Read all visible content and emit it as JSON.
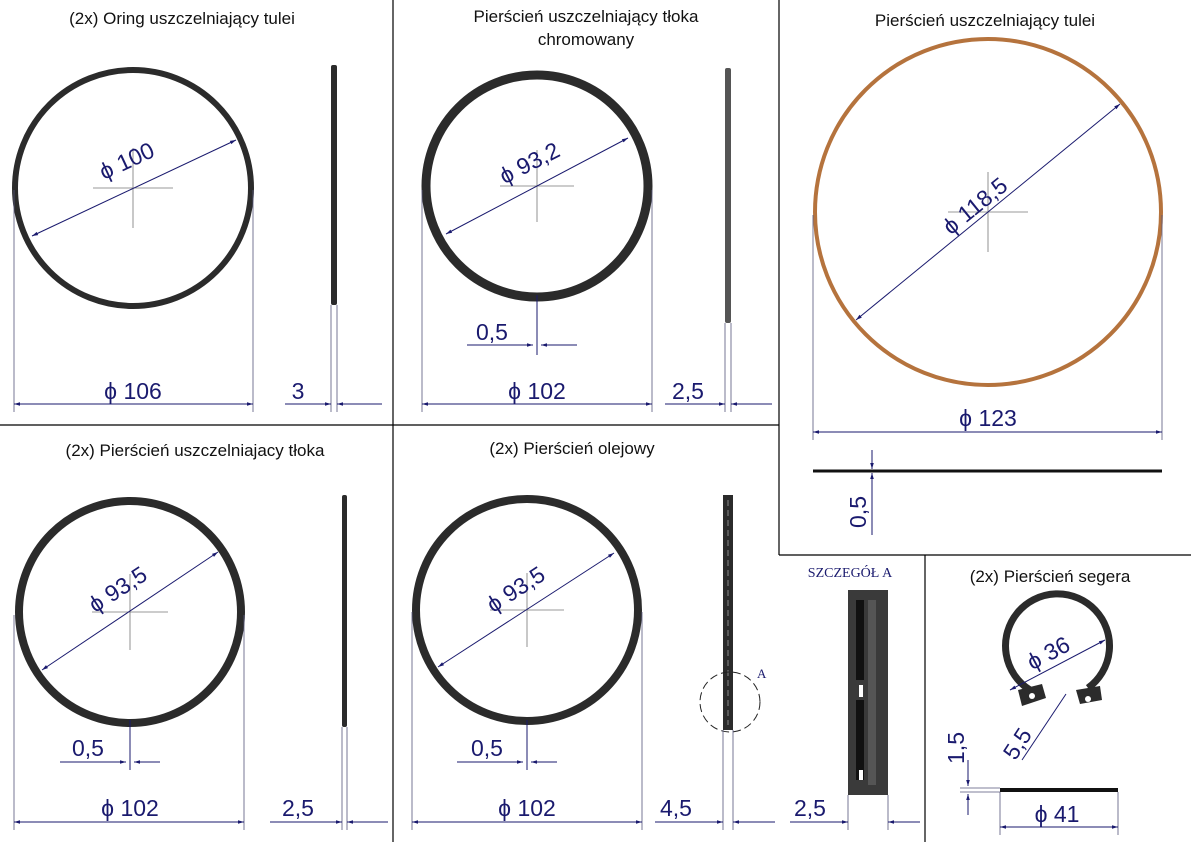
{
  "panels": [
    {
      "title": "(2x) Oring uszczelniający tulei",
      "dims": [
        "ϕ 100",
        "ϕ 106",
        "3"
      ]
    },
    {
      "title": [
        "Pierścień uszczelniający tłoka",
        "chromowany"
      ],
      "dims": [
        "ϕ 93,2",
        "0,5",
        "ϕ 102",
        "2,5"
      ]
    },
    {
      "title": "Pierścień uszczelniający tulei",
      "dims": [
        "ϕ 118,5",
        "ϕ 123",
        "0,5"
      ]
    },
    {
      "title": "(2x) Pierścień uszczelniajacy tłoka",
      "dims": [
        "ϕ 93,5",
        "0,5",
        "ϕ 102",
        "2,5"
      ]
    },
    {
      "title": "(2x) Pierścień olejowy",
      "dims": [
        "ϕ 93,5",
        "0,5",
        "ϕ 102",
        "4,5",
        "2,5"
      ],
      "detail_marker": "A",
      "detail_title": "SZCZEGÓŁ A"
    },
    {
      "title": "(2x) Pierścień segera",
      "dims": [
        "ϕ 36",
        "5,5",
        "1,5",
        "ϕ 41"
      ]
    }
  ]
}
